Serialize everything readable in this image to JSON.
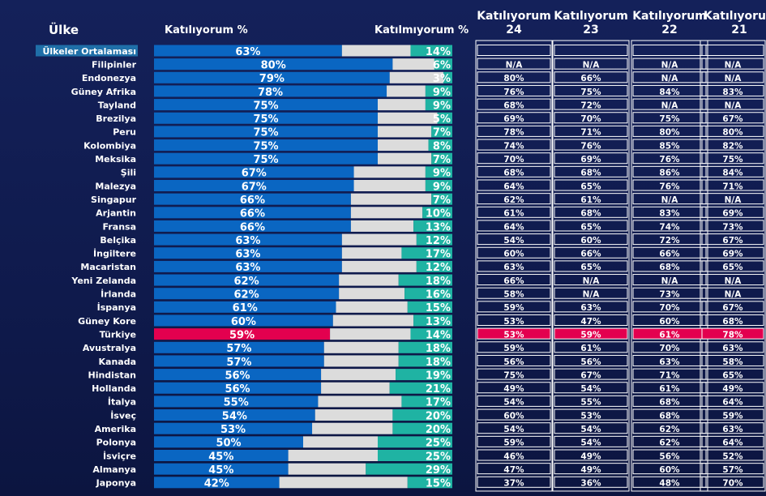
{
  "headers": {
    "country": "Ülke",
    "agree": "Katılıyorum %",
    "disagree": "Katılmıyorum %",
    "years": [
      {
        "line1": "Katılıyorum",
        "line2": "24"
      },
      {
        "line1": "Katılıyorum",
        "line2": "23"
      },
      {
        "line1": "Katılıyorum",
        "line2": "22"
      },
      {
        "line1": "Katılıyorum",
        "line2": "21"
      }
    ]
  },
  "colors": {
    "agree": "#0a66c2",
    "neutral": "#dcdcdc",
    "disagree": "#1fb3a3",
    "highlight": "#e3004f",
    "average_label_bg": "#1f6fa8"
  },
  "chart_data": {
    "type": "bar",
    "stacked": true,
    "orientation": "horizontal",
    "xlim": [
      0,
      100
    ],
    "highlight_category": "Türkiye",
    "average_category": "Ülkeler Ortalaması",
    "categories": [
      "Ülkeler Ortalaması",
      "Filipinler",
      "Endonezya",
      "Güney Afrika",
      "Tayland",
      "Brezilya",
      "Peru",
      "Kolombiya",
      "Meksika",
      "Şili",
      "Malezya",
      "Singapur",
      "Arjantin",
      "Fransa",
      "Belçika",
      "İngiltere",
      "Macaristan",
      "Yeni Zelanda",
      "İrlanda",
      "İspanya",
      "Güney Kore",
      "Türkiye",
      "Avustralya",
      "Kanada",
      "Hindistan",
      "Hollanda",
      "İtalya",
      "İsveç",
      "Amerika",
      "Polonya",
      "İsviçre",
      "Almanya",
      "Japonya"
    ],
    "series": [
      {
        "name": "Katılıyorum %",
        "values": [
          63,
          80,
          79,
          78,
          75,
          75,
          75,
          75,
          75,
          67,
          67,
          66,
          66,
          66,
          63,
          63,
          63,
          62,
          62,
          61,
          60,
          59,
          57,
          57,
          56,
          56,
          55,
          54,
          53,
          50,
          45,
          45,
          42
        ]
      },
      {
        "name": "Katılmıyorum %",
        "values": [
          14,
          6,
          3,
          9,
          9,
          5,
          7,
          8,
          7,
          9,
          9,
          7,
          10,
          13,
          12,
          17,
          12,
          18,
          16,
          15,
          13,
          14,
          18,
          18,
          19,
          21,
          17,
          20,
          20,
          25,
          25,
          29,
          15
        ]
      }
    ],
    "table": {
      "columns": [
        "Katılıyorum 24",
        "Katılıyorum 23",
        "Katılıyorum 22",
        "Katılıyorum 21"
      ],
      "rows": [
        [
          "",
          "",
          "",
          ""
        ],
        [
          "N/A",
          "N/A",
          "N/A",
          "N/A"
        ],
        [
          "80%",
          "66%",
          "N/A",
          "N/A"
        ],
        [
          "76%",
          "75%",
          "84%",
          "83%"
        ],
        [
          "68%",
          "72%",
          "N/A",
          "N/A"
        ],
        [
          "69%",
          "70%",
          "75%",
          "67%"
        ],
        [
          "78%",
          "71%",
          "80%",
          "80%"
        ],
        [
          "74%",
          "76%",
          "85%",
          "82%"
        ],
        [
          "70%",
          "69%",
          "76%",
          "75%"
        ],
        [
          "68%",
          "68%",
          "86%",
          "84%"
        ],
        [
          "64%",
          "65%",
          "76%",
          "71%"
        ],
        [
          "62%",
          "61%",
          "N/A",
          "N/A"
        ],
        [
          "61%",
          "68%",
          "83%",
          "69%"
        ],
        [
          "64%",
          "65%",
          "74%",
          "73%"
        ],
        [
          "54%",
          "60%",
          "72%",
          "67%"
        ],
        [
          "60%",
          "66%",
          "66%",
          "69%"
        ],
        [
          "63%",
          "65%",
          "68%",
          "65%"
        ],
        [
          "66%",
          "N/A",
          "N/A",
          "N/A"
        ],
        [
          "58%",
          "N/A",
          "73%",
          "N/A"
        ],
        [
          "59%",
          "63%",
          "70%",
          "67%"
        ],
        [
          "53%",
          "47%",
          "60%",
          "68%"
        ],
        [
          "53%",
          "59%",
          "61%",
          "78%"
        ],
        [
          "59%",
          "61%",
          "70%",
          "63%"
        ],
        [
          "56%",
          "56%",
          "63%",
          "58%"
        ],
        [
          "75%",
          "67%",
          "71%",
          "65%"
        ],
        [
          "49%",
          "54%",
          "61%",
          "49%"
        ],
        [
          "54%",
          "55%",
          "68%",
          "64%"
        ],
        [
          "60%",
          "53%",
          "68%",
          "59%"
        ],
        [
          "54%",
          "54%",
          "62%",
          "63%"
        ],
        [
          "59%",
          "54%",
          "62%",
          "64%"
        ],
        [
          "46%",
          "49%",
          "56%",
          "52%"
        ],
        [
          "47%",
          "49%",
          "60%",
          "57%"
        ],
        [
          "37%",
          "36%",
          "48%",
          "70%"
        ]
      ]
    }
  }
}
